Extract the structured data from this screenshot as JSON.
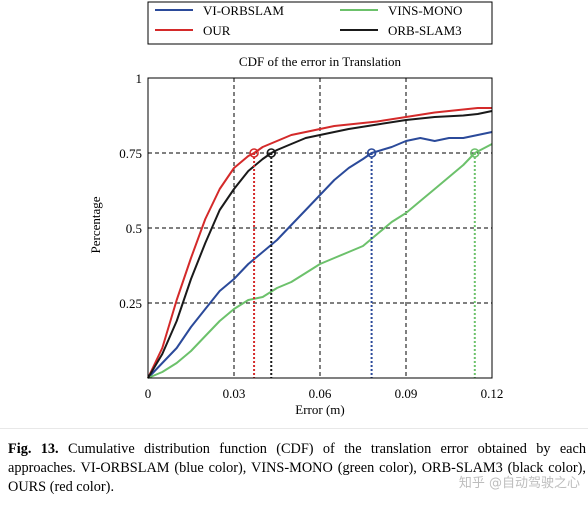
{
  "chart_data": {
    "type": "line",
    "title": "CDF of the error in Translation",
    "xlabel": "Error (m)",
    "ylabel": "Percentage",
    "xlim": [
      0,
      0.12
    ],
    "ylim": [
      0,
      1
    ],
    "xticks": [
      "0",
      "0.03",
      "0.06",
      "0.09",
      "0.12"
    ],
    "yticks": [
      "0.25",
      "0.5",
      "0.75",
      "1"
    ],
    "xtick_values": [
      0,
      0.03,
      0.06,
      0.09,
      0.12
    ],
    "ytick_values": [
      0.25,
      0.5,
      0.75,
      1
    ],
    "grid": true,
    "legend_position": "top",
    "series": [
      {
        "name": "VI-ORBSLAM",
        "color": "#2b4a9a",
        "x": [
          0,
          0.005,
          0.01,
          0.015,
          0.02,
          0.025,
          0.03,
          0.035,
          0.04,
          0.045,
          0.05,
          0.055,
          0.06,
          0.065,
          0.07,
          0.075,
          0.078,
          0.085,
          0.09,
          0.095,
          0.1,
          0.105,
          0.11,
          0.115,
          0.12
        ],
        "y": [
          0,
          0.05,
          0.1,
          0.17,
          0.23,
          0.29,
          0.33,
          0.38,
          0.42,
          0.46,
          0.51,
          0.56,
          0.61,
          0.66,
          0.7,
          0.73,
          0.75,
          0.77,
          0.79,
          0.8,
          0.79,
          0.8,
          0.8,
          0.81,
          0.82
        ]
      },
      {
        "name": "VINS-MONO",
        "color": "#6cc16b",
        "x": [
          0,
          0.005,
          0.01,
          0.015,
          0.02,
          0.025,
          0.03,
          0.035,
          0.04,
          0.045,
          0.05,
          0.055,
          0.06,
          0.065,
          0.07,
          0.075,
          0.08,
          0.085,
          0.09,
          0.095,
          0.1,
          0.105,
          0.11,
          0.114,
          0.12
        ],
        "y": [
          0,
          0.02,
          0.05,
          0.09,
          0.14,
          0.19,
          0.23,
          0.26,
          0.27,
          0.3,
          0.32,
          0.35,
          0.38,
          0.4,
          0.42,
          0.44,
          0.48,
          0.52,
          0.55,
          0.59,
          0.63,
          0.67,
          0.71,
          0.75,
          0.78
        ]
      },
      {
        "name": "OUR",
        "color": "#d42a2a",
        "x": [
          0,
          0.005,
          0.01,
          0.015,
          0.02,
          0.025,
          0.03,
          0.035,
          0.037,
          0.04,
          0.045,
          0.05,
          0.055,
          0.06,
          0.065,
          0.07,
          0.08,
          0.09,
          0.1,
          0.11,
          0.115,
          0.12
        ],
        "y": [
          0,
          0.1,
          0.26,
          0.4,
          0.53,
          0.63,
          0.7,
          0.74,
          0.75,
          0.77,
          0.79,
          0.81,
          0.82,
          0.83,
          0.84,
          0.845,
          0.855,
          0.87,
          0.885,
          0.895,
          0.9,
          0.9
        ]
      },
      {
        "name": "ORB-SLAM3",
        "color": "#1a1a1a",
        "x": [
          0,
          0.005,
          0.01,
          0.015,
          0.02,
          0.025,
          0.03,
          0.035,
          0.04,
          0.043,
          0.045,
          0.05,
          0.055,
          0.06,
          0.065,
          0.07,
          0.08,
          0.09,
          0.1,
          0.11,
          0.115,
          0.12
        ],
        "y": [
          0,
          0.08,
          0.19,
          0.33,
          0.45,
          0.56,
          0.63,
          0.69,
          0.73,
          0.75,
          0.76,
          0.78,
          0.8,
          0.81,
          0.82,
          0.83,
          0.845,
          0.86,
          0.87,
          0.875,
          0.88,
          0.89
        ]
      }
    ],
    "markers": [
      {
        "series": "VI-ORBSLAM",
        "x": 0.078,
        "y": 0.75,
        "color": "#2b4a9a"
      },
      {
        "series": "VINS-MONO",
        "x": 0.114,
        "y": 0.75,
        "color": "#6cc16b"
      },
      {
        "series": "OUR",
        "x": 0.037,
        "y": 0.75,
        "color": "#d42a2a"
      },
      {
        "series": "ORB-SLAM3",
        "x": 0.043,
        "y": 0.75,
        "color": "#1a1a1a"
      }
    ]
  },
  "legend": [
    {
      "label": "VI-ORBSLAM",
      "color": "#2b4a9a"
    },
    {
      "label": "VINS-MONO",
      "color": "#6cc16b"
    },
    {
      "label": "OUR",
      "color": "#d42a2a"
    },
    {
      "label": "ORB-SLAM3",
      "color": "#1a1a1a"
    }
  ],
  "caption": {
    "fig_label": "Fig. 13.",
    "text": "Cumulative distribution function (CDF) of the translation error obtained by each approaches. VI-ORBSLAM (blue color), VINS-MONO (green color), ORB-SLAM3 (black color), OURS (red color)."
  },
  "watermark": "知乎 @自动驾驶之心"
}
